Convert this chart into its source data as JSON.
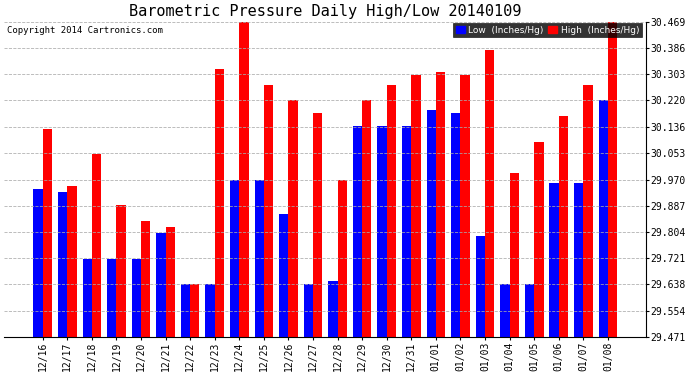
{
  "title": "Barometric Pressure Daily High/Low 20140109",
  "copyright": "Copyright 2014 Cartronics.com",
  "categories": [
    "12/16",
    "12/17",
    "12/18",
    "12/19",
    "12/20",
    "12/21",
    "12/22",
    "12/23",
    "12/24",
    "12/25",
    "12/26",
    "12/27",
    "12/28",
    "12/29",
    "12/30",
    "12/31",
    "01/01",
    "01/02",
    "01/03",
    "01/04",
    "01/05",
    "01/06",
    "01/07",
    "01/08"
  ],
  "low_values": [
    29.94,
    29.93,
    29.72,
    29.72,
    29.72,
    29.8,
    29.64,
    29.64,
    29.97,
    29.97,
    29.86,
    29.64,
    29.65,
    30.14,
    30.14,
    30.14,
    30.19,
    30.18,
    29.79,
    29.64,
    29.64,
    29.96,
    29.96,
    30.22
  ],
  "high_values": [
    30.13,
    29.95,
    30.05,
    29.89,
    29.84,
    29.82,
    29.64,
    30.32,
    30.47,
    30.27,
    30.22,
    30.18,
    29.97,
    30.22,
    30.27,
    30.3,
    30.31,
    30.3,
    30.38,
    29.99,
    30.09,
    30.17,
    30.27,
    30.47
  ],
  "ymin": 29.471,
  "ymax": 30.469,
  "yticks": [
    29.471,
    29.554,
    29.638,
    29.721,
    29.804,
    29.887,
    29.97,
    30.053,
    30.136,
    30.22,
    30.303,
    30.386,
    30.469
  ],
  "bar_width": 0.38,
  "low_color": "#0000ff",
  "high_color": "#ff0000",
  "bg_color": "#ffffff",
  "grid_color": "#aaaaaa",
  "title_fontsize": 11,
  "tick_fontsize": 7,
  "copyright_fontsize": 6.5
}
